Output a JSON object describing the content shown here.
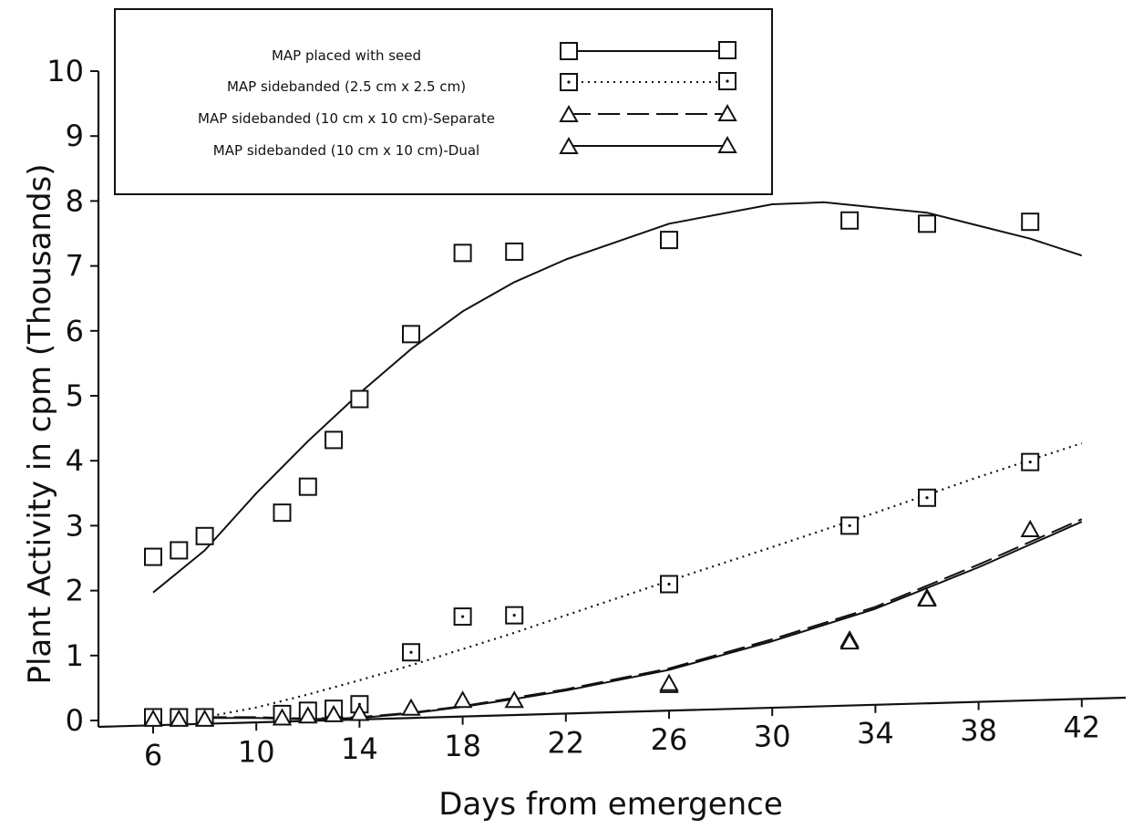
{
  "chart_data": {
    "type": "scatter",
    "title": "",
    "xlabel": "Days from emergence",
    "ylabel": "Plant Activity in cpm (Thousands)",
    "xlim": [
      4.5,
      44
    ],
    "ylim": [
      0,
      10
    ],
    "x_ticks": [
      "6",
      "10",
      "14",
      "18",
      "22",
      "26",
      "30",
      "34",
      "38",
      "42"
    ],
    "y_ticks": [
      "0",
      "1",
      "2",
      "3",
      "4",
      "5",
      "6",
      "7",
      "8",
      "9",
      "10"
    ],
    "grid": false,
    "legend_position": "top-left",
    "series": [
      {
        "name": "MAP placed with seed",
        "marker": "square",
        "line_style": "solid",
        "points": [
          [
            6,
            2.52
          ],
          [
            7,
            2.62
          ],
          [
            8,
            2.84
          ],
          [
            11,
            3.2
          ],
          [
            12,
            3.6
          ],
          [
            13,
            4.32
          ],
          [
            14,
            4.95
          ],
          [
            16,
            5.95
          ],
          [
            18,
            7.2
          ],
          [
            20,
            7.22
          ],
          [
            26,
            7.4
          ],
          [
            33,
            7.7
          ],
          [
            36,
            7.65
          ],
          [
            40,
            7.68
          ]
        ],
        "fit": [
          [
            6,
            1.97
          ],
          [
            8,
            2.62
          ],
          [
            10,
            3.5
          ],
          [
            12,
            4.3
          ],
          [
            14,
            5.04
          ],
          [
            16,
            5.72
          ],
          [
            18,
            6.3
          ],
          [
            20,
            6.75
          ],
          [
            22,
            7.1
          ],
          [
            26,
            7.65
          ],
          [
            30,
            7.95
          ],
          [
            32,
            7.98
          ],
          [
            34,
            7.9
          ],
          [
            36,
            7.82
          ],
          [
            38,
            7.62
          ],
          [
            40,
            7.42
          ],
          [
            42,
            7.16
          ]
        ]
      },
      {
        "name": "MAP sidebanded (2.5 cm x 2.5 cm)",
        "marker": "square-dot",
        "line_style": "dotted",
        "points": [
          [
            6,
            0.05
          ],
          [
            7,
            0.05
          ],
          [
            8,
            0.05
          ],
          [
            11,
            0.1
          ],
          [
            12,
            0.15
          ],
          [
            13,
            0.18
          ],
          [
            14,
            0.25
          ],
          [
            16,
            1.05
          ],
          [
            18,
            1.6
          ],
          [
            20,
            1.62
          ],
          [
            26,
            2.1
          ],
          [
            33,
            3.0
          ],
          [
            36,
            3.43
          ],
          [
            40,
            3.98
          ]
        ],
        "fit": [
          [
            8,
            0.05
          ],
          [
            10,
            0.2
          ],
          [
            12,
            0.4
          ],
          [
            14,
            0.62
          ],
          [
            16,
            0.85
          ],
          [
            18,
            1.1
          ],
          [
            20,
            1.35
          ],
          [
            22,
            1.62
          ],
          [
            26,
            2.15
          ],
          [
            30,
            2.67
          ],
          [
            34,
            3.2
          ],
          [
            38,
            3.75
          ],
          [
            42,
            4.27
          ]
        ]
      },
      {
        "name": "MAP sidebanded (10 cm x 10 cm)-Separate",
        "marker": "triangle",
        "line_style": "dashed",
        "points": [
          [
            6,
            0.03
          ],
          [
            7,
            0.03
          ],
          [
            8,
            0.03
          ],
          [
            11,
            0.05
          ],
          [
            12,
            0.08
          ],
          [
            13,
            0.1
          ],
          [
            14,
            0.12
          ],
          [
            16,
            0.2
          ],
          [
            18,
            0.32
          ],
          [
            20,
            0.32
          ],
          [
            26,
            0.55
          ],
          [
            33,
            1.25
          ],
          [
            36,
            1.9
          ],
          [
            40,
            2.95
          ]
        ],
        "fit": [
          [
            8,
            0.05
          ],
          [
            10,
            0.05
          ],
          [
            12,
            0.03
          ],
          [
            14,
            0.05
          ],
          [
            16,
            0.12
          ],
          [
            18,
            0.22
          ],
          [
            20,
            0.35
          ],
          [
            22,
            0.48
          ],
          [
            26,
            0.8
          ],
          [
            30,
            1.25
          ],
          [
            34,
            1.75
          ],
          [
            38,
            2.4
          ],
          [
            42,
            3.1
          ]
        ]
      },
      {
        "name": "MAP sidebanded (10 cm x 10 cm)-Dual",
        "marker": "triangle",
        "line_style": "solid",
        "points": [
          [
            26,
            0.58
          ],
          [
            33,
            1.22
          ],
          [
            36,
            1.88
          ]
        ],
        "fit": [
          [
            8,
            0.04
          ],
          [
            10,
            0.04
          ],
          [
            12,
            0.02
          ],
          [
            14,
            0.04
          ],
          [
            16,
            0.11
          ],
          [
            18,
            0.21
          ],
          [
            20,
            0.33
          ],
          [
            22,
            0.46
          ],
          [
            26,
            0.78
          ],
          [
            30,
            1.22
          ],
          [
            34,
            1.72
          ],
          [
            38,
            2.36
          ],
          [
            42,
            3.06
          ]
        ]
      }
    ]
  }
}
